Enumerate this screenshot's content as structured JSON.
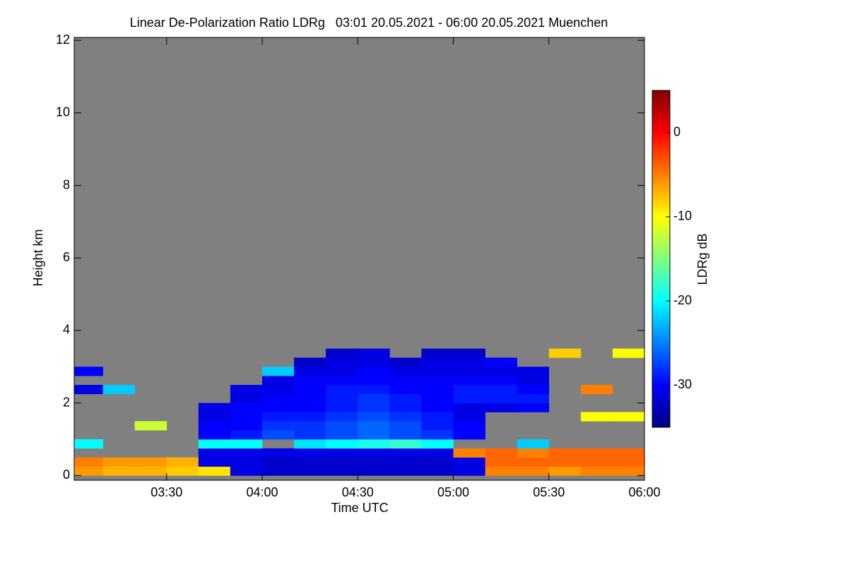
{
  "chart_data": {
    "type": "heatmap",
    "title": "Linear De-Polarization Ratio LDRg   03:01 20.05.2021 - 06:00 20.05.2021 Muenchen",
    "x_label": "Time UTC",
    "y_label": "Height km",
    "colorbar_label": "LDRg dB",
    "nodata_color": "#808080",
    "colormap": [
      "#00007f",
      "#0000ff",
      "#007fff",
      "#00ffff",
      "#7fff7f",
      "#ffff00",
      "#ff7f00",
      "#ff0000",
      "#7f0000"
    ],
    "xlim": [
      3.0167,
      6.0
    ],
    "xticks": [
      {
        "value": 3.5,
        "label": "03:30"
      },
      {
        "value": 4.0,
        "label": "04:00"
      },
      {
        "value": 4.5,
        "label": "04:30"
      },
      {
        "value": 5.0,
        "label": "05:00"
      },
      {
        "value": 5.5,
        "label": "05:30"
      },
      {
        "value": 6.0,
        "label": "06:00"
      }
    ],
    "ylim": [
      -0.13,
      12.08
    ],
    "yticks": [
      0,
      2,
      4,
      6,
      8,
      10,
      12
    ],
    "zlim": [
      -35,
      5
    ],
    "zticks": [
      -30,
      -20,
      -10,
      0
    ],
    "x": [
      3.0167,
      3.1667,
      3.3333,
      3.5,
      3.6667,
      3.8333,
      4.0,
      4.1667,
      4.3333,
      4.5,
      4.6667,
      4.8333,
      5.0,
      5.1667,
      5.3333,
      5.5,
      5.6667,
      5.8333,
      6.0
    ],
    "y": [
      0,
      0.25,
      0.5,
      0.75,
      1.0,
      1.25,
      1.5,
      1.75,
      2.0,
      2.25,
      2.5,
      2.75,
      3.0,
      3.25,
      3.5
    ],
    "z": [
      [
        -6,
        -7,
        -7,
        -8,
        -9,
        -31,
        -32,
        -32,
        -32,
        -32,
        -32,
        -32,
        -31,
        -5,
        -5,
        -6,
        -5,
        -5
      ],
      [
        -5,
        -6,
        -6,
        -7,
        -31,
        -31,
        -32,
        -32,
        -32,
        -32,
        -32,
        -32,
        -31,
        -4,
        -4,
        -4,
        -4,
        -4
      ],
      [
        null,
        null,
        null,
        null,
        -31,
        -31,
        -31,
        -31,
        -31,
        -31,
        -31,
        -31,
        -5,
        -4,
        -5,
        -4,
        -4,
        -4
      ],
      [
        -20,
        null,
        null,
        null,
        -20,
        -20,
        null,
        -21,
        -20,
        -19,
        -18,
        -20,
        null,
        null,
        -22,
        null,
        null,
        null
      ],
      [
        null,
        null,
        null,
        null,
        -30,
        -29,
        -27,
        -28,
        -27,
        -26,
        -27,
        -28,
        -30,
        null,
        null,
        null,
        null,
        null
      ],
      [
        null,
        null,
        -12,
        null,
        -30,
        -30,
        -28,
        -28,
        -27,
        -26,
        -27,
        -29,
        -30,
        null,
        null,
        null,
        null,
        null
      ],
      [
        null,
        null,
        null,
        null,
        -31,
        -30,
        -29,
        -29,
        -28,
        -27,
        -28,
        -29,
        -31,
        null,
        null,
        null,
        -10,
        -10
      ],
      [
        null,
        null,
        null,
        null,
        -31,
        -30,
        -30,
        -30,
        -29,
        -28,
        -29,
        -30,
        -31,
        -31,
        -30,
        null,
        null,
        null
      ],
      [
        null,
        null,
        null,
        null,
        null,
        -31,
        -30,
        -30,
        -29,
        -28,
        -29,
        -30,
        -29,
        -29,
        -29,
        null,
        null,
        null
      ],
      [
        -31,
        -22,
        null,
        null,
        null,
        -31,
        -31,
        -30,
        -29,
        -29,
        -30,
        -30,
        -29,
        -29,
        -30,
        null,
        -5,
        null
      ],
      [
        null,
        null,
        null,
        null,
        null,
        null,
        -31,
        -30,
        -30,
        -30,
        -30,
        -30,
        -30,
        -30,
        -31,
        null,
        null,
        null
      ],
      [
        -30,
        null,
        null,
        null,
        null,
        null,
        -22,
        -31,
        -31,
        -30,
        -31,
        -31,
        -31,
        -31,
        -31,
        null,
        null,
        null
      ],
      [
        null,
        null,
        null,
        null,
        null,
        null,
        null,
        -32,
        -31,
        -31,
        -32,
        -31,
        -31,
        -30,
        null,
        null,
        null,
        null
      ],
      [
        null,
        null,
        null,
        null,
        null,
        null,
        null,
        null,
        -32,
        -31,
        null,
        -32,
        -32,
        null,
        null,
        -8,
        null,
        -10
      ]
    ]
  }
}
